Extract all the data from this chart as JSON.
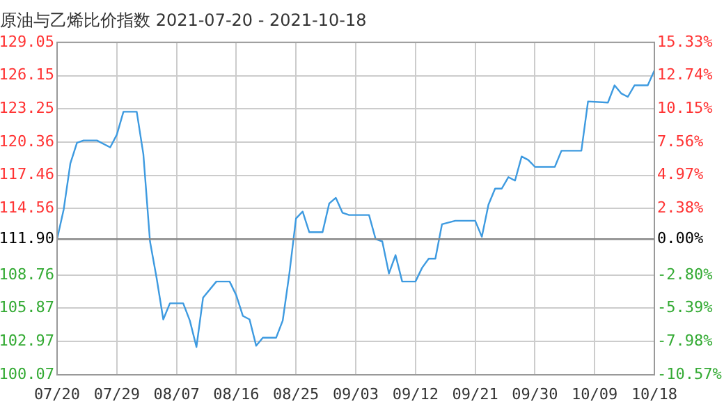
{
  "chart_data": {
    "type": "line",
    "title": "原油与乙烯比价指数 2021-07-20 - 2021-10-18",
    "x": [
      "2021-07-20",
      "2021-07-21",
      "2021-07-22",
      "2021-07-23",
      "2021-07-24",
      "2021-07-26",
      "2021-07-28",
      "2021-07-29",
      "2021-07-30",
      "2021-08-01",
      "2021-08-02",
      "2021-08-03",
      "2021-08-04",
      "2021-08-05",
      "2021-08-06",
      "2021-08-08",
      "2021-08-09",
      "2021-08-10",
      "2021-08-11",
      "2021-08-13",
      "2021-08-15",
      "2021-08-16",
      "2021-08-17",
      "2021-08-18",
      "2021-08-19",
      "2021-08-20",
      "2021-08-22",
      "2021-08-23",
      "2021-08-24",
      "2021-08-25",
      "2021-08-26",
      "2021-08-27",
      "2021-08-29",
      "2021-08-30",
      "2021-08-31",
      "2021-09-01",
      "2021-09-02",
      "2021-09-05",
      "2021-09-06",
      "2021-09-07",
      "2021-09-08",
      "2021-09-09",
      "2021-09-10",
      "2021-09-12",
      "2021-09-13",
      "2021-09-14",
      "2021-09-15",
      "2021-09-16",
      "2021-09-18",
      "2021-09-21",
      "2021-09-22",
      "2021-09-23",
      "2021-09-24",
      "2021-09-25",
      "2021-09-26",
      "2021-09-27",
      "2021-09-28",
      "2021-09-29",
      "2021-09-30",
      "2021-10-03",
      "2021-10-04",
      "2021-10-07",
      "2021-10-08",
      "2021-10-11",
      "2021-10-12",
      "2021-10-13",
      "2021-10-14",
      "2021-10-15",
      "2021-10-17",
      "2021-10-18"
    ],
    "series": [
      {
        "color": "#3d9ae0",
        "values": [
          111.9,
          114.5,
          118.5,
          120.3,
          120.5,
          120.5,
          119.9,
          121.0,
          123.0,
          123.0,
          119.3,
          111.7,
          108.5,
          104.9,
          106.3,
          106.3,
          104.8,
          102.5,
          106.8,
          108.2,
          108.2,
          107.0,
          105.2,
          104.9,
          102.6,
          103.3,
          103.3,
          104.8,
          108.9,
          113.7,
          114.3,
          112.5,
          112.5,
          115.0,
          115.5,
          114.2,
          114.0,
          114.0,
          111.9,
          111.7,
          108.9,
          110.5,
          108.2,
          108.2,
          109.4,
          110.2,
          110.2,
          113.2,
          113.5,
          113.5,
          112.1,
          114.9,
          116.3,
          116.3,
          117.3,
          117.0,
          119.1,
          118.8,
          118.2,
          118.2,
          119.6,
          119.6,
          123.9,
          123.8,
          125.3,
          124.6,
          124.3,
          125.3,
          125.3,
          126.6
        ]
      }
    ],
    "xlim": [
      "2021-07-20",
      "2021-10-18"
    ],
    "xticks": [
      {
        "value": "2021-07-20",
        "label": "07/20"
      },
      {
        "value": "2021-07-29",
        "label": "07/29"
      },
      {
        "value": "2021-08-07",
        "label": "08/07"
      },
      {
        "value": "2021-08-16",
        "label": "08/16"
      },
      {
        "value": "2021-08-25",
        "label": "08/25"
      },
      {
        "value": "2021-09-03",
        "label": "09/03"
      },
      {
        "value": "2021-09-12",
        "label": "09/12"
      },
      {
        "value": "2021-09-21",
        "label": "09/21"
      },
      {
        "value": "2021-09-30",
        "label": "09/30"
      },
      {
        "value": "2021-10-09",
        "label": "10/09"
      },
      {
        "value": "2021-10-18",
        "label": "10/18"
      }
    ],
    "ylim": [
      100.07,
      129.05
    ],
    "yticks": [
      100.07,
      102.97,
      105.87,
      108.76,
      {
        "value": 111.9,
        "label": "111.90"
      },
      114.56,
      117.46,
      120.36,
      123.25,
      126.15,
      129.05
    ],
    "y2lim": [
      -10.57,
      15.33
    ],
    "y2ticks": [
      {
        "value": -10.57,
        "label": "-10.57%"
      },
      {
        "value": -7.98,
        "label": "-7.98%"
      },
      {
        "value": -5.39,
        "label": "-5.39%"
      },
      {
        "value": -2.8,
        "label": "-2.80%"
      },
      {
        "value": 0,
        "label": "0.00%"
      },
      {
        "value": 2.38,
        "label": "2.38%"
      },
      {
        "value": 4.97,
        "label": "4.97%"
      },
      {
        "value": 7.56,
        "label": "7.56%"
      },
      {
        "value": 10.15,
        "label": "10.15%"
      },
      {
        "value": 12.74,
        "label": "12.74%"
      },
      {
        "value": 15.33,
        "label": "15.33%"
      }
    ],
    "ref_lines": [
      {
        "axis": "y",
        "value": 111.9,
        "color": "#888888"
      }
    ],
    "grid": true,
    "legend": false,
    "marker": "none",
    "line_style": "solid"
  }
}
